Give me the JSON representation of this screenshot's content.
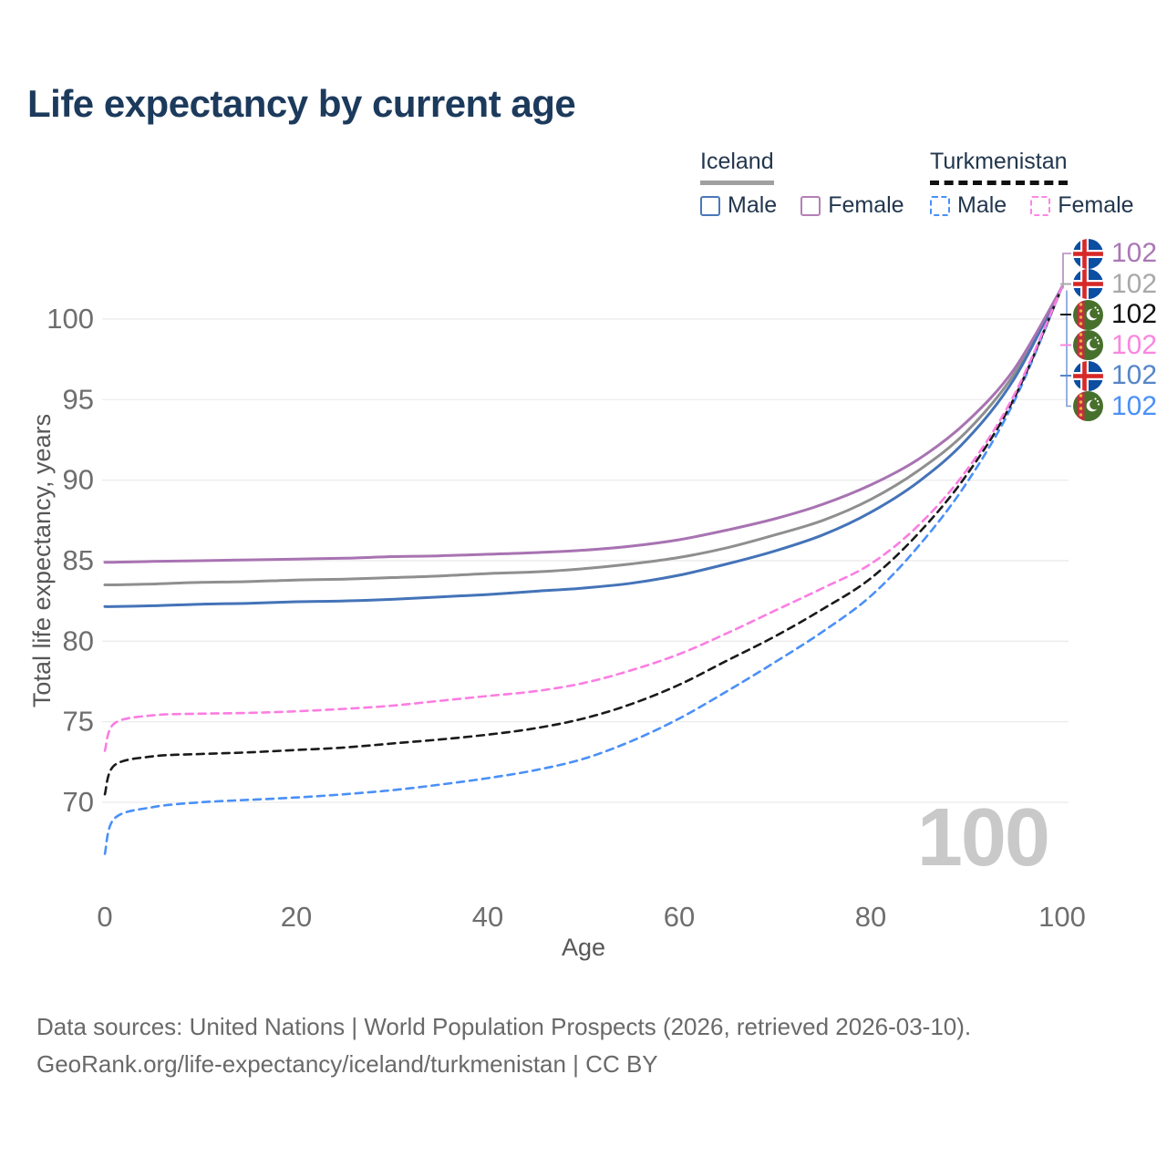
{
  "title": "Life expectancy by current age",
  "legend": {
    "groups": [
      {
        "name": "Iceland",
        "underline": "solid",
        "underline_color": "#a0a0a0",
        "items": [
          {
            "label": "Male",
            "color": "#4a78b8",
            "dashed": false
          },
          {
            "label": "Female",
            "color": "#b57fb5",
            "dashed": false
          }
        ]
      },
      {
        "name": "Turkmenistan",
        "underline": "dashed",
        "underline_color": "#111111",
        "items": [
          {
            "label": "Male",
            "color": "#4a90f7",
            "dashed": true
          },
          {
            "label": "Female",
            "color": "#fb86e4",
            "dashed": true
          }
        ]
      }
    ]
  },
  "chart_data": {
    "type": "line",
    "title": "Life expectancy by current age",
    "xlabel": "Age",
    "ylabel": "Total life expectancy, years",
    "x_ticks": [
      0,
      20,
      40,
      60,
      80,
      100
    ],
    "y_ticks": [
      70,
      75,
      80,
      85,
      90,
      95,
      100
    ],
    "xlim": [
      0,
      100
    ],
    "ylim": [
      66,
      103
    ],
    "grid": "horizontal-only",
    "legend_position": "top-right",
    "watermark": "100",
    "x": [
      0,
      1,
      5,
      10,
      15,
      20,
      25,
      30,
      35,
      40,
      45,
      50,
      55,
      60,
      65,
      70,
      75,
      80,
      85,
      90,
      95,
      100
    ],
    "series": [
      {
        "name": "Iceland Both sexes",
        "country": "Iceland",
        "sex": "Both sexes",
        "line": "solid",
        "color": "#8f8f8f",
        "values": [
          83.5,
          83.5,
          83.55,
          83.65,
          83.7,
          83.8,
          83.85,
          83.95,
          84.05,
          84.2,
          84.3,
          84.5,
          84.8,
          85.2,
          85.8,
          86.6,
          87.5,
          88.8,
          90.6,
          93.0,
          96.6,
          102
        ],
        "end_label": "102"
      },
      {
        "name": "Iceland Male",
        "country": "Iceland",
        "sex": "Male",
        "line": "solid",
        "color": "#4473b8",
        "values": [
          82.15,
          82.15,
          82.2,
          82.3,
          82.35,
          82.45,
          82.5,
          82.6,
          82.75,
          82.9,
          83.1,
          83.3,
          83.6,
          84.1,
          84.8,
          85.6,
          86.6,
          88.0,
          89.9,
          92.5,
          96.3,
          102
        ],
        "end_label": "102"
      },
      {
        "name": "Iceland Female",
        "country": "Iceland",
        "sex": "Female",
        "line": "solid",
        "color": "#a873b2",
        "values": [
          84.9,
          84.9,
          84.95,
          85.0,
          85.05,
          85.1,
          85.15,
          85.25,
          85.3,
          85.4,
          85.5,
          85.65,
          85.9,
          86.3,
          86.9,
          87.6,
          88.5,
          89.7,
          91.3,
          93.6,
          96.9,
          102
        ],
        "end_label": "102"
      },
      {
        "name": "Turkmenistan Male",
        "country": "Turkmenistan",
        "sex": "Male",
        "line": "dashed",
        "color": "#4a90f7",
        "values": [
          66.8,
          69.0,
          69.7,
          70.0,
          70.15,
          70.3,
          70.5,
          70.75,
          71.1,
          71.5,
          72.0,
          72.7,
          73.8,
          75.2,
          76.9,
          78.7,
          80.6,
          82.8,
          85.9,
          89.8,
          94.9,
          102
        ],
        "end_label": "102"
      },
      {
        "name": "Turkmenistan Both sexes",
        "country": "Turkmenistan",
        "sex": "Both sexes",
        "line": "dashed",
        "color": "#1a1a1a",
        "values": [
          70.5,
          72.3,
          72.85,
          73.0,
          73.1,
          73.25,
          73.4,
          73.65,
          73.9,
          74.2,
          74.6,
          75.2,
          76.1,
          77.3,
          78.8,
          80.3,
          82.0,
          83.9,
          86.7,
          90.3,
          95.1,
          102
        ],
        "end_label": "102"
      },
      {
        "name": "Turkmenistan Female",
        "country": "Turkmenistan",
        "sex": "Female",
        "line": "dashed",
        "color": "#fb7de2",
        "values": [
          73.2,
          74.9,
          75.4,
          75.5,
          75.55,
          75.65,
          75.8,
          76.0,
          76.3,
          76.6,
          76.9,
          77.4,
          78.2,
          79.2,
          80.5,
          81.9,
          83.3,
          84.8,
          87.2,
          90.6,
          95.3,
          102
        ],
        "end_label": "102"
      }
    ]
  },
  "end_labels": [
    {
      "country": "Iceland",
      "series": "Female",
      "value": "102",
      "color": "#aa77b4"
    },
    {
      "country": "Iceland",
      "series": "Both sexes",
      "value": "102",
      "color": "#a8a8a8"
    },
    {
      "country": "Turkmenistan",
      "series": "Both sexes",
      "value": "102",
      "color": "#111111"
    },
    {
      "country": "Turkmenistan",
      "series": "Female",
      "value": "102",
      "color": "#f986e0"
    },
    {
      "country": "Iceland",
      "series": "Male",
      "value": "102",
      "color": "#5585c8"
    },
    {
      "country": "Turkmenistan",
      "series": "Male",
      "value": "102",
      "color": "#4a90f7"
    }
  ],
  "footer": {
    "line1": "Data sources: United Nations | World Population Prospects (2026, retrieved 2026-03-10).",
    "line2": "GeoRank.org/life-expectancy/iceland/turkmenistan | CC BY"
  }
}
